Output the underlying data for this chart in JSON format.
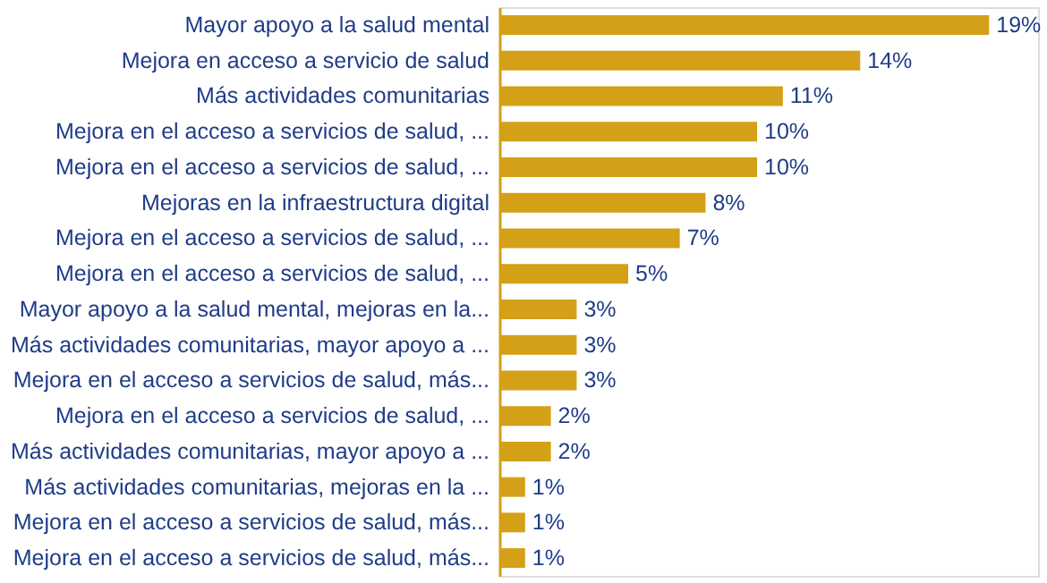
{
  "chart_data": {
    "type": "bar",
    "orientation": "horizontal",
    "categories": [
      "Mayor apoyo a la salud mental",
      "Mejora en acceso a servicio de salud",
      "Más actividades comunitarias",
      "Mejora en el acceso a servicios de salud, ...",
      "Mejora en el acceso a servicios de salud, ...",
      "Mejoras en la infraestructura digital",
      "Mejora en el acceso a servicios de salud, ...",
      "Mejora en el acceso a servicios de salud, ...",
      "Mayor apoyo a la salud mental, mejoras en la...",
      "Más actividades comunitarias, mayor apoyo a ...",
      "Mejora en el acceso a servicios de salud, más...",
      "Mejora en el acceso a servicios de salud, ...",
      "Más actividades comunitarias, mayor apoyo a ...",
      "Más actividades comunitarias, mejoras en la ...",
      "Mejora en el acceso a servicios de salud, más...",
      "Mejora en el acceso a servicios de salud, más..."
    ],
    "values": [
      19,
      14,
      11,
      10,
      10,
      8,
      7,
      5,
      3,
      3,
      3,
      2,
      2,
      1,
      1,
      1
    ],
    "value_labels": [
      "19%",
      "14%",
      "11%",
      "10%",
      "10%",
      "8%",
      "7%",
      "5%",
      "3%",
      "3%",
      "3%",
      "2%",
      "2%",
      "1%",
      "1%",
      "1%"
    ],
    "color": "#d4a017"
  }
}
